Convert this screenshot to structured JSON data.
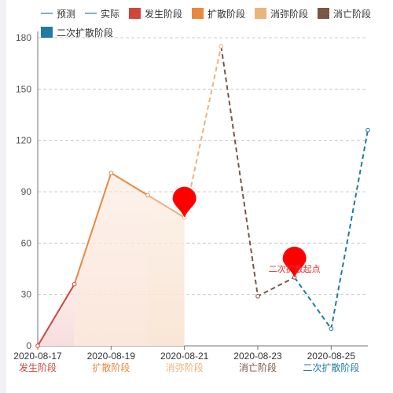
{
  "chart_data": {
    "type": "line",
    "legend": {
      "placement": "top",
      "items": [
        {
          "name": "预测",
          "kind": "line",
          "color": "#2a7fa6"
        },
        {
          "name": "实际",
          "kind": "line",
          "color": "#2a7fa6"
        },
        {
          "name": "发生阶段",
          "kind": "box",
          "color": "#d0463b"
        },
        {
          "name": "扩散阶段",
          "kind": "box",
          "color": "#e8883e"
        },
        {
          "name": "消弥阶段",
          "kind": "box",
          "color": "#ebb37e"
        },
        {
          "name": "消亡阶段",
          "kind": "box",
          "color": "#7a5646"
        },
        {
          "name": "二次扩散阶段",
          "kind": "box",
          "color": "#1f7ba6"
        }
      ]
    },
    "ylim": [
      0,
      180
    ],
    "yticks": [
      0,
      30,
      60,
      90,
      120,
      150,
      180
    ],
    "grid": true,
    "x_ticks": [
      "2020-08-17",
      "2020-08-19",
      "2020-08-21",
      "2020-08-23",
      "2020-08-25"
    ],
    "points": [
      {
        "x": "2020-08-17",
        "y": 0
      },
      {
        "x": "2020-08-18",
        "y": 36
      },
      {
        "x": "2020-08-19",
        "y": 101
      },
      {
        "x": "2020-08-20",
        "y": 88
      },
      {
        "x": "2020-08-21",
        "y": 75
      },
      {
        "x": "2020-08-22",
        "y": 175
      },
      {
        "x": "2020-08-23",
        "y": 29
      },
      {
        "x": "2020-08-24",
        "y": 40
      },
      {
        "x": "2020-08-25",
        "y": 10
      },
      {
        "x": "2020-08-26",
        "y": 126
      }
    ],
    "segments": [
      {
        "phase": "发生阶段",
        "from": "2020-08-17",
        "to": "2020-08-18",
        "color": "#d0463b",
        "dashed": false,
        "fill": "#f8dede"
      },
      {
        "phase": "扩散阶段",
        "from": "2020-08-18",
        "to": "2020-08-20",
        "color": "#e8883e",
        "dashed": false,
        "fill": "#fbe7dc"
      },
      {
        "phase": "消弥阶段",
        "from": "2020-08-20",
        "to": "2020-08-21",
        "color": "#ebb37e",
        "dashed": false,
        "fill": "#f9e6d6"
      },
      {
        "phase": "消弥阶段",
        "from": "2020-08-21",
        "to": "2020-08-22",
        "color": "#ebb37e",
        "dashed": true,
        "fill": null
      },
      {
        "phase": "消亡阶段",
        "from": "2020-08-22",
        "to": "2020-08-24",
        "color": "#7a5646",
        "dashed": true,
        "fill": null
      },
      {
        "phase": "二次扩散阶段",
        "from": "2020-08-24",
        "to": "2020-08-26",
        "color": "#1f7ba6",
        "dashed": true,
        "fill": null
      }
    ],
    "phase_labels": [
      {
        "text": "发生阶段",
        "x": "2020-08-17",
        "color": "#d0463b"
      },
      {
        "text": "扩散阶段",
        "x": "2020-08-19",
        "color": "#e8883e"
      },
      {
        "text": "消弥阶段",
        "x": "2020-08-21",
        "color": "#ebb37e"
      },
      {
        "text": "消亡阶段",
        "x": "2020-08-23",
        "color": "#7a5646"
      },
      {
        "text": "二次扩散阶段",
        "x": "2020-08-25",
        "color": "#1f7ba6"
      }
    ],
    "markers": [
      {
        "x": "2020-08-21",
        "y": 75,
        "label": "",
        "color": "#ff0000"
      },
      {
        "x": "2020-08-24",
        "y": 40,
        "label": "二次扩散起点",
        "color": "#ff0000"
      }
    ]
  }
}
